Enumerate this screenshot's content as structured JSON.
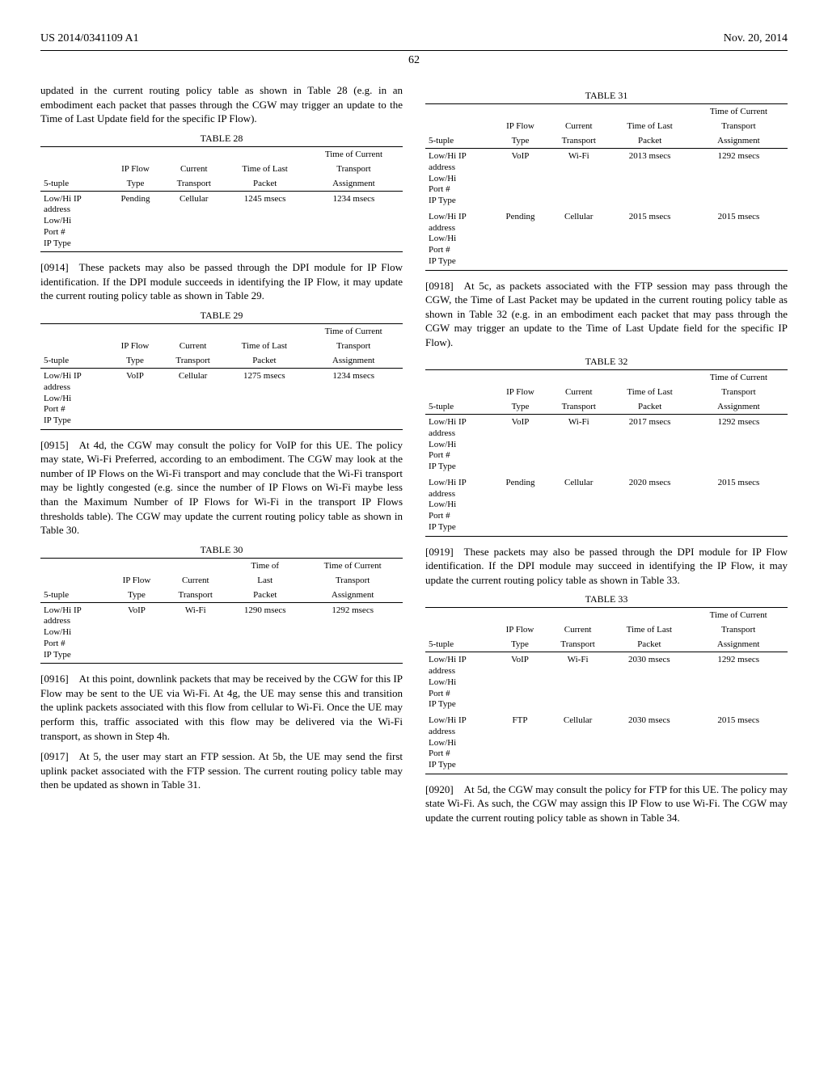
{
  "header": {
    "left": "US 2014/0341109 A1",
    "right": "Nov. 20, 2014"
  },
  "page_number": "62",
  "col_left": {
    "intro": "updated in the current routing policy table as shown in Table 28 (e.g. in an embodiment each packet that passes through the CGW may trigger an update to the Time of Last Update field for the specific IP Flow).",
    "t28": {
      "caption": "TABLE 28",
      "h1": "5-tuple",
      "h2a": "IP Flow",
      "h2b": "Type",
      "h3a": "Current",
      "h3b": "Transport",
      "h4a": "Time of Last",
      "h4b": "Packet",
      "h5a": "Time of Current",
      "h5b": "Transport",
      "h5c": "Assignment",
      "r1c1": "Low/Hi IP\naddress\nLow/Hi\nPort #\nIP Type",
      "r1c2": "Pending",
      "r1c3": "Cellular",
      "r1c4": "1245 msecs",
      "r1c5": "1234 msecs"
    },
    "p0914": "[0914] These packets may also be passed through the DPI module for IP Flow identification. If the DPI module succeeds in identifying the IP Flow, it may update the current routing policy table as shown in Table 29.",
    "t29": {
      "caption": "TABLE 29",
      "r1c2": "VoIP",
      "r1c3": "Cellular",
      "r1c4": "1275 msecs",
      "r1c5": "1234 msecs"
    },
    "p0915": "[0915] At 4d, the CGW may consult the policy for VoIP for this UE. The policy may state, Wi-Fi Preferred, according to an embodiment. The CGW may look at the number of IP Flows on the Wi-Fi transport and may conclude that the Wi-Fi transport may be lightly congested (e.g. since the number of IP Flows on Wi-Fi maybe less than the Maximum Number of IP Flows for Wi-Fi in the transport IP Flows thresholds table). The CGW may update the current routing policy table as shown in Table 30.",
    "t30": {
      "caption": "TABLE 30",
      "h4a": "Time of",
      "h4b": "Last",
      "h4c": "Packet",
      "r1c2": "VoIP",
      "r1c3": "Wi-Fi",
      "r1c4": "1290 msecs",
      "r1c5": "1292 msecs"
    },
    "p0916": "[0916] At this point, downlink packets that may be received by the CGW for this IP Flow may be sent to the UE via Wi-Fi. At 4g, the UE may sense this and transition the uplink packets associated with this flow from cellular to Wi-Fi. Once the UE may perform this, traffic associated with this flow may be delivered via the Wi-Fi transport, as shown in Step 4h.",
    "p0917": "[0917] At 5, the user may start an FTP session. At 5b, the UE may send the first uplink packet associated with the FTP session. The current routing policy table may then be updated as shown in Table 31."
  },
  "col_right": {
    "t31": {
      "caption": "TABLE 31",
      "r1c2": "VoIP",
      "r1c3": "Wi-Fi",
      "r1c4": "2013 msecs",
      "r1c5": "1292 msecs",
      "r2c2": "Pending",
      "r2c3": "Cellular",
      "r2c4": "2015 msecs",
      "r2c5": "2015 msecs"
    },
    "p0918": "[0918] At 5c, as packets associated with the FTP session may pass through the CGW, the Time of Last Packet may be updated in the current routing policy table as shown in Table 32 (e.g. in an embodiment each packet that may pass through the CGW may trigger an update to the Time of Last Update field for the specific IP Flow).",
    "t32": {
      "caption": "TABLE 32",
      "r1c4": "2017 msecs",
      "r1c5": "1292 msecs",
      "r2c4": "2020 msecs",
      "r2c5": "2015 msecs"
    },
    "p0919": "[0919] These packets may also be passed through the DPI module for IP Flow identification. If the DPI module may succeed in identifying the IP Flow, it may update the current routing policy table as shown in Table 33.",
    "t33": {
      "caption": "TABLE 33",
      "r1c2": "VoIP",
      "r1c3": "Wi-Fi",
      "r1c4": "2030 msecs",
      "r1c5": "1292 msecs",
      "r2c2": "FTP",
      "r2c3": "Cellular",
      "r2c4": "2030 msecs",
      "r2c5": "2015 msecs"
    },
    "p0920": "[0920] At 5d, the CGW may consult the policy for FTP for this UE. The policy may state Wi-Fi. As such, the CGW may assign this IP Flow to use Wi-Fi. The CGW may update the current routing policy table as shown in Table 34."
  },
  "shared": {
    "tuple": "Low/Hi IP\naddress\nLow/Hi\nPort #\nIP Type"
  }
}
